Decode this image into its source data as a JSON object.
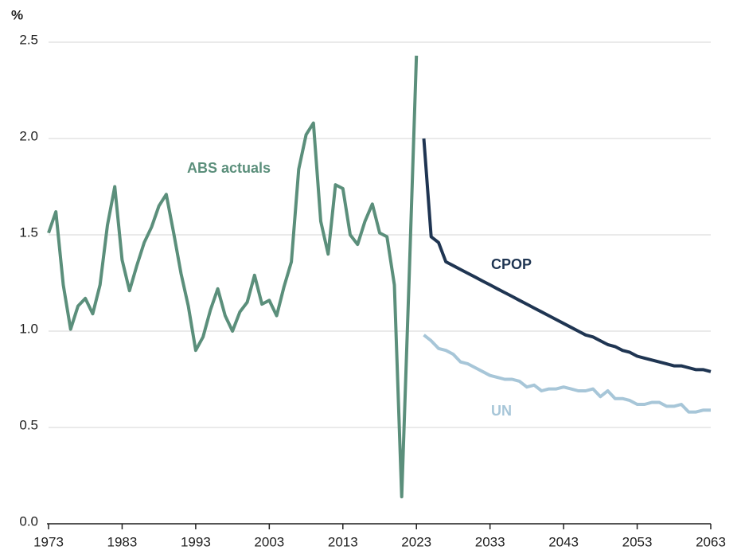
{
  "chart_data": {
    "type": "line",
    "y_label": "%",
    "x": [
      1973,
      1974,
      1975,
      1976,
      1977,
      1978,
      1979,
      1980,
      1981,
      1982,
      1983,
      1984,
      1985,
      1986,
      1987,
      1988,
      1989,
      1990,
      1991,
      1992,
      1993,
      1994,
      1995,
      1996,
      1997,
      1998,
      1999,
      2000,
      2001,
      2002,
      2003,
      2004,
      2005,
      2006,
      2007,
      2008,
      2009,
      2010,
      2011,
      2012,
      2013,
      2014,
      2015,
      2016,
      2017,
      2018,
      2019,
      2020,
      2021,
      2022,
      2023,
      2024,
      2025,
      2026,
      2027,
      2028,
      2029,
      2030,
      2031,
      2032,
      2033,
      2034,
      2035,
      2036,
      2037,
      2038,
      2039,
      2040,
      2041,
      2042,
      2043,
      2044,
      2045,
      2046,
      2047,
      2048,
      2049,
      2050,
      2051,
      2052,
      2053,
      2054,
      2055,
      2056,
      2057,
      2058,
      2059,
      2060,
      2061,
      2062,
      2063
    ],
    "series": [
      {
        "name": "ABS actuals",
        "color": "#5b8f7b",
        "values": [
          1.51,
          1.62,
          1.24,
          1.01,
          1.13,
          1.17,
          1.09,
          1.24,
          1.55,
          1.75,
          1.37,
          1.21,
          1.34,
          1.46,
          1.54,
          1.65,
          1.71,
          1.51,
          1.3,
          1.13,
          0.9,
          0.97,
          1.11,
          1.22,
          1.08,
          1.0,
          1.1,
          1.15,
          1.29,
          1.14,
          1.16,
          1.08,
          1.23,
          1.36,
          1.84,
          2.02,
          2.08,
          1.57,
          1.4,
          1.76,
          1.74,
          1.5,
          1.45,
          1.57,
          1.66,
          1.51,
          1.49,
          1.24,
          0.14,
          1.27,
          2.43,
          null,
          null,
          null,
          null,
          null,
          null,
          null,
          null,
          null,
          null,
          null,
          null,
          null,
          null,
          null,
          null,
          null,
          null,
          null,
          null,
          null,
          null,
          null,
          null,
          null,
          null,
          null,
          null,
          null,
          null,
          null,
          null,
          null,
          null,
          null,
          null,
          null,
          null,
          null,
          null
        ]
      },
      {
        "name": "CPOP",
        "color": "#1f3552",
        "values": [
          null,
          null,
          null,
          null,
          null,
          null,
          null,
          null,
          null,
          null,
          null,
          null,
          null,
          null,
          null,
          null,
          null,
          null,
          null,
          null,
          null,
          null,
          null,
          null,
          null,
          null,
          null,
          null,
          null,
          null,
          null,
          null,
          null,
          null,
          null,
          null,
          null,
          null,
          null,
          null,
          null,
          null,
          null,
          null,
          null,
          null,
          null,
          null,
          null,
          null,
          null,
          2.0,
          1.49,
          1.46,
          1.36,
          1.34,
          1.32,
          1.3,
          1.28,
          1.26,
          1.24,
          1.22,
          1.2,
          1.18,
          1.16,
          1.14,
          1.12,
          1.1,
          1.08,
          1.06,
          1.04,
          1.02,
          1.0,
          0.98,
          0.97,
          0.95,
          0.93,
          0.92,
          0.9,
          0.89,
          0.87,
          0.86,
          0.85,
          0.84,
          0.83,
          0.82,
          0.82,
          0.81,
          0.8,
          0.8,
          0.79
        ]
      },
      {
        "name": "UN",
        "color": "#a7c6d8",
        "values": [
          null,
          null,
          null,
          null,
          null,
          null,
          null,
          null,
          null,
          null,
          null,
          null,
          null,
          null,
          null,
          null,
          null,
          null,
          null,
          null,
          null,
          null,
          null,
          null,
          null,
          null,
          null,
          null,
          null,
          null,
          null,
          null,
          null,
          null,
          null,
          null,
          null,
          null,
          null,
          null,
          null,
          null,
          null,
          null,
          null,
          null,
          null,
          null,
          null,
          null,
          null,
          0.98,
          0.95,
          0.91,
          0.9,
          0.88,
          0.84,
          0.83,
          0.81,
          0.79,
          0.77,
          0.76,
          0.75,
          0.75,
          0.74,
          0.71,
          0.72,
          0.69,
          0.7,
          0.7,
          0.71,
          0.7,
          0.69,
          0.69,
          0.7,
          0.66,
          0.69,
          0.65,
          0.65,
          0.64,
          0.62,
          0.62,
          0.63,
          0.63,
          0.61,
          0.61,
          0.62,
          0.58,
          0.58,
          0.59,
          0.59
        ]
      }
    ],
    "xlim": [
      1973,
      2063
    ],
    "xticks": [
      1973,
      1983,
      1993,
      2003,
      2013,
      2023,
      2033,
      2043,
      2053,
      2063
    ],
    "ylim": [
      0,
      2.5
    ],
    "yticks": [
      {
        "value": 0,
        "label": "0.0"
      },
      0.5,
      {
        "value": 1,
        "label": "1.0"
      },
      1.5,
      {
        "value": 2,
        "label": "2.0"
      },
      2.5
    ],
    "grid": true
  }
}
